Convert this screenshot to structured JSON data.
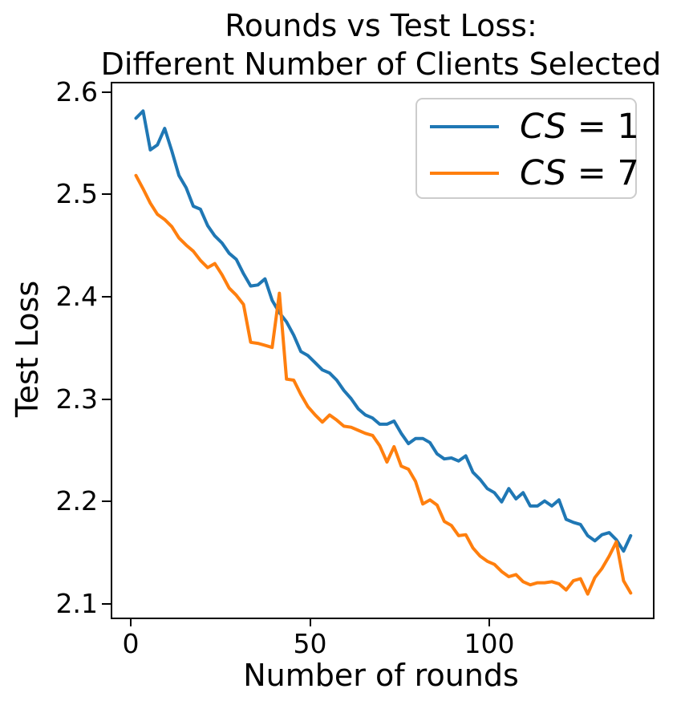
{
  "title": {
    "line1": "Rounds vs Test Loss:",
    "line2": "Different Number of Clients Selected"
  },
  "axes": {
    "xlabel": "Number of rounds",
    "ylabel": "Test Loss",
    "xtick_labels": [
      "0",
      "50",
      "100"
    ],
    "ytick_labels": [
      "2.1",
      "2.2",
      "2.3",
      "2.4",
      "2.5",
      "2.6"
    ]
  },
  "legend": {
    "entries": [
      {
        "var": "CS",
        "eq": " = 1",
        "color": "#1f77b4"
      },
      {
        "var": "CS",
        "eq": " = 7",
        "color": "#ff7f0e"
      }
    ]
  },
  "chart_data": {
    "type": "line",
    "title": "Rounds vs Test Loss: Different Number of Clients Selected",
    "xlabel": "Number of rounds",
    "ylabel": "Test Loss",
    "grid": false,
    "legend_position": "upper right",
    "xlim": [
      -5.6,
      145.2
    ],
    "ylim": [
      2.088,
      2.61
    ],
    "xticks": [
      0,
      50,
      100
    ],
    "yticks": [
      2.1,
      2.2,
      2.3,
      2.4,
      2.5,
      2.6
    ],
    "x": [
      1,
      3,
      5,
      7,
      9,
      11,
      13,
      15,
      17,
      19,
      21,
      23,
      25,
      27,
      29,
      31,
      33,
      35,
      37,
      39,
      41,
      43,
      45,
      47,
      49,
      51,
      53,
      55,
      57,
      59,
      61,
      63,
      65,
      67,
      69,
      71,
      73,
      75,
      77,
      79,
      81,
      83,
      85,
      87,
      89,
      91,
      93,
      95,
      97,
      99,
      101,
      103,
      105,
      107,
      109,
      111,
      113,
      115,
      117,
      119,
      121,
      123,
      125,
      127,
      129,
      131,
      133,
      135,
      137,
      139
    ],
    "series": [
      {
        "name": "CS = 1",
        "color": "#1f77b4",
        "values": [
          2.576,
          2.583,
          2.545,
          2.55,
          2.566,
          2.544,
          2.52,
          2.508,
          2.49,
          2.487,
          2.471,
          2.461,
          2.454,
          2.444,
          2.438,
          2.424,
          2.412,
          2.413,
          2.419,
          2.398,
          2.386,
          2.377,
          2.364,
          2.348,
          2.344,
          2.337,
          2.33,
          2.327,
          2.32,
          2.31,
          2.302,
          2.292,
          2.286,
          2.283,
          2.277,
          2.277,
          2.28,
          2.268,
          2.258,
          2.263,
          2.263,
          2.259,
          2.248,
          2.243,
          2.244,
          2.241,
          2.246,
          2.23,
          2.223,
          2.214,
          2.21,
          2.201,
          2.214,
          2.204,
          2.21,
          2.197,
          2.197,
          2.202,
          2.197,
          2.203,
          2.184,
          2.181,
          2.179,
          2.168,
          2.163,
          2.169,
          2.171,
          2.164,
          2.153,
          2.168
        ]
      },
      {
        "name": "CS = 7",
        "color": "#ff7f0e",
        "values": [
          2.52,
          2.507,
          2.493,
          2.482,
          2.477,
          2.47,
          2.459,
          2.452,
          2.446,
          2.437,
          2.43,
          2.434,
          2.423,
          2.41,
          2.403,
          2.394,
          2.357,
          2.356,
          2.354,
          2.352,
          2.405,
          2.321,
          2.32,
          2.306,
          2.294,
          2.286,
          2.279,
          2.286,
          2.281,
          2.275,
          2.274,
          2.271,
          2.268,
          2.266,
          2.256,
          2.24,
          2.255,
          2.236,
          2.233,
          2.221,
          2.199,
          2.203,
          2.198,
          2.182,
          2.178,
          2.168,
          2.169,
          2.156,
          2.148,
          2.143,
          2.14,
          2.133,
          2.128,
          2.13,
          2.123,
          2.12,
          2.122,
          2.122,
          2.123,
          2.121,
          2.115,
          2.124,
          2.126,
          2.111,
          2.127,
          2.136,
          2.148,
          2.162,
          2.124,
          2.112
        ]
      }
    ]
  }
}
